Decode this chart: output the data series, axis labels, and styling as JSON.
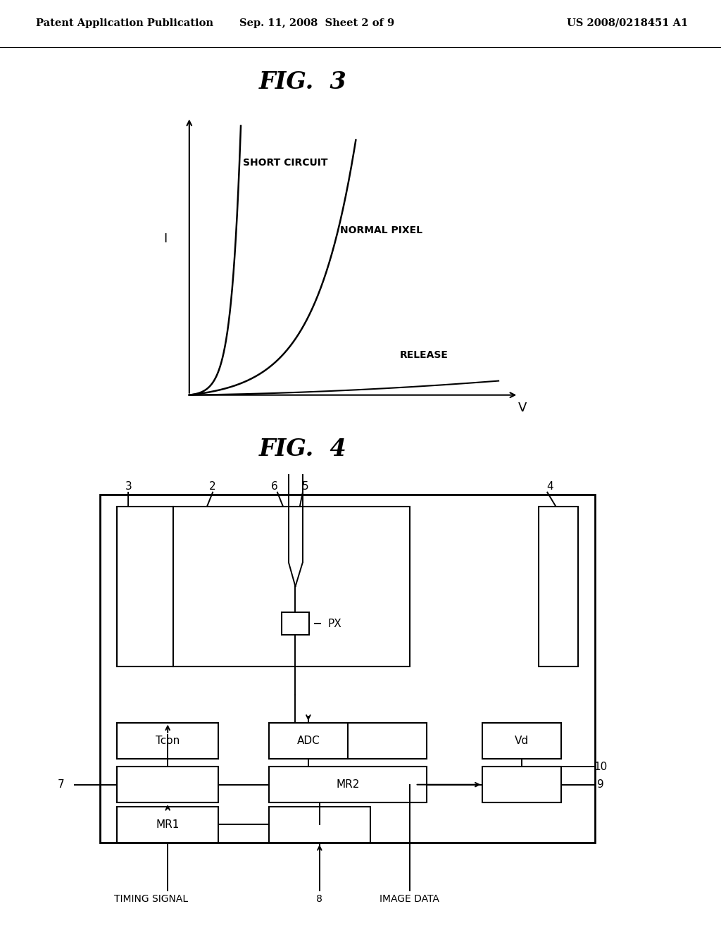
{
  "bg_color": "#ffffff",
  "header_text": "Patent Application Publication",
  "header_date": "Sep. 11, 2008  Sheet 2 of 9",
  "header_patent": "US 2008/0218451 A1",
  "fig3_title": "FIG.  3",
  "fig4_title": "FIG.  4",
  "fig3_ylabel": "I",
  "fig3_xlabel": "V",
  "label_short_circuit": "SHORT CIRCUIT",
  "label_normal_pixel": "NORMAL PIXEL",
  "label_release": "RELEASE",
  "label_px": "PX",
  "label_tcon": "Tcon",
  "label_adc": "ADC",
  "label_vd": "Vd",
  "label_mr1": "MR1",
  "label_mr2": "MR2",
  "label_timing": "TIMING SIGNAL",
  "label_image": "IMAGE DATA",
  "label_3": "3",
  "label_2": "2",
  "label_6": "6",
  "label_5": "5",
  "label_4": "4",
  "label_7": "7",
  "label_8": "8",
  "label_9": "9",
  "label_10": "10",
  "line_color": "#000000",
  "text_color": "#000000"
}
